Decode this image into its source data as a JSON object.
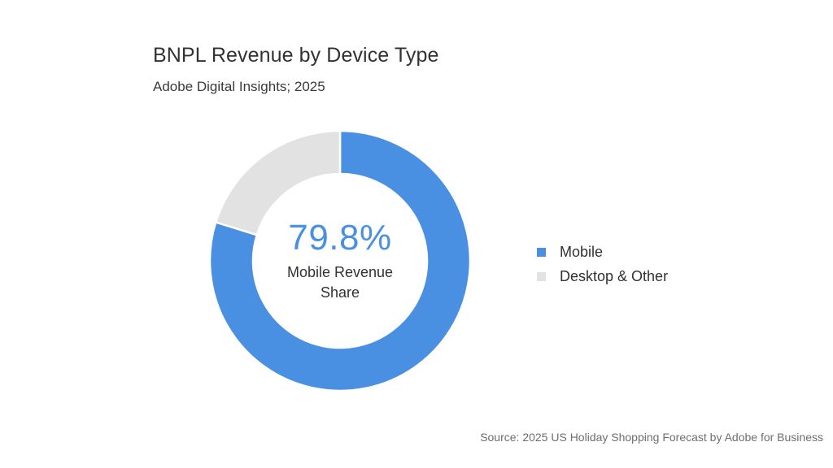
{
  "page": {
    "title": "BNPL Revenue by Device Type",
    "subtitle": "Adobe Digital Insights; 2025",
    "source": "Source: 2025 US Holiday Shopping Forecast by Adobe for Business",
    "background": "#ffffff"
  },
  "chart_data": {
    "type": "pie",
    "variant": "donut",
    "title": "BNPL Revenue by Device Type",
    "unit": "%",
    "segments": [
      {
        "label": "Mobile",
        "value": 79.8,
        "color": "#4A90E2"
      },
      {
        "label": "Desktop & Other",
        "value": 20.2,
        "color": "#E2E2E2"
      }
    ],
    "start_angle_deg": 0,
    "direction": "clockwise",
    "inner_radius_ratio": 0.67,
    "separator_color": "#ffffff",
    "legend_position": "right",
    "center_label": {
      "value": "79.8%",
      "caption": "Mobile Revenue Share"
    }
  }
}
